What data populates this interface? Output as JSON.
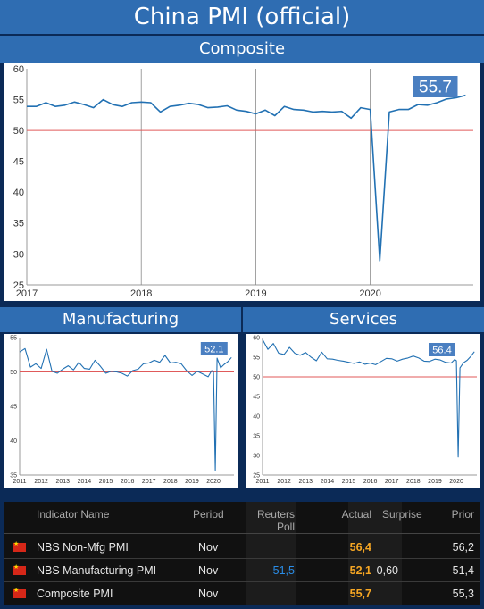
{
  "title": "China PMI (official)",
  "sections": {
    "composite": "Composite",
    "manufacturing": "Manufacturing",
    "services": "Services"
  },
  "colors": {
    "header_bg": "#2f6db2",
    "page_bg": "#0b2a57",
    "line": "#2271b3",
    "threshold": "#e05a5a",
    "label_bg": "#4a7fc1",
    "actual": "#f6a623",
    "poll": "#2a8de8"
  },
  "chart_data": [
    {
      "type": "line",
      "name": "composite",
      "ylim": [
        25,
        60
      ],
      "yticks": [
        25,
        30,
        35,
        40,
        45,
        50,
        55,
        60
      ],
      "xlim": [
        2017,
        2020.9
      ],
      "xticks": [
        {
          "v": 2017,
          "label": "2017"
        },
        {
          "v": 2018,
          "label": "2018"
        },
        {
          "v": 2019,
          "label": "2019"
        },
        {
          "v": 2020,
          "label": "2020"
        }
      ],
      "vgrid": [
        2018,
        2019,
        2020
      ],
      "threshold": 50,
      "callout": "55.7",
      "x": [
        2017.0,
        2017.083,
        2017.167,
        2017.25,
        2017.333,
        2017.417,
        2017.5,
        2017.583,
        2017.667,
        2017.75,
        2017.833,
        2017.917,
        2018.0,
        2018.083,
        2018.167,
        2018.25,
        2018.333,
        2018.417,
        2018.5,
        2018.583,
        2018.667,
        2018.75,
        2018.833,
        2018.917,
        2019.0,
        2019.083,
        2019.167,
        2019.25,
        2019.333,
        2019.417,
        2019.5,
        2019.583,
        2019.667,
        2019.75,
        2019.833,
        2019.917,
        2020.0,
        2020.083,
        2020.167,
        2020.25,
        2020.333,
        2020.417,
        2020.5,
        2020.583,
        2020.667,
        2020.75,
        2020.833
      ],
      "values": [
        53.9,
        53.9,
        54.5,
        53.9,
        54.1,
        54.6,
        54.2,
        53.7,
        55.0,
        54.2,
        53.9,
        54.5,
        54.6,
        54.5,
        53.0,
        53.9,
        54.1,
        54.4,
        54.2,
        53.7,
        53.8,
        54.0,
        53.3,
        53.1,
        52.7,
        53.3,
        52.4,
        53.9,
        53.4,
        53.3,
        53.0,
        53.1,
        53.0,
        53.1,
        52.0,
        53.7,
        53.4,
        28.9,
        53.0,
        53.4,
        53.4,
        54.2,
        54.1,
        54.5,
        55.1,
        55.3,
        55.7
      ]
    },
    {
      "type": "line",
      "name": "manufacturing",
      "ylim": [
        35,
        55
      ],
      "yticks": [
        35,
        40,
        45,
        50,
        55
      ],
      "xlim": [
        2011,
        2020.95
      ],
      "xticks": [
        {
          "v": 2011,
          "label": "2011"
        },
        {
          "v": 2012,
          "label": "2012"
        },
        {
          "v": 2013,
          "label": "2013"
        },
        {
          "v": 2014,
          "label": "2014"
        },
        {
          "v": 2015,
          "label": "2015"
        },
        {
          "v": 2016,
          "label": "2016"
        },
        {
          "v": 2017,
          "label": "2017"
        },
        {
          "v": 2018,
          "label": "2018"
        },
        {
          "v": 2019,
          "label": "2019"
        },
        {
          "v": 2020,
          "label": "2020"
        }
      ],
      "threshold": 50,
      "callout": "52.1",
      "x": [
        2011.0,
        2011.25,
        2011.5,
        2011.75,
        2012.0,
        2012.25,
        2012.5,
        2012.75,
        2013.0,
        2013.25,
        2013.5,
        2013.75,
        2014.0,
        2014.25,
        2014.5,
        2014.75,
        2015.0,
        2015.25,
        2015.5,
        2015.75,
        2016.0,
        2016.25,
        2016.5,
        2016.75,
        2017.0,
        2017.25,
        2017.5,
        2017.75,
        2018.0,
        2018.25,
        2018.5,
        2018.75,
        2019.0,
        2019.25,
        2019.5,
        2019.75,
        2019.917,
        2020.0,
        2020.083,
        2020.167,
        2020.333,
        2020.5,
        2020.667,
        2020.833
      ],
      "values": [
        52.9,
        53.4,
        50.7,
        51.2,
        50.5,
        53.3,
        50.1,
        49.8,
        50.4,
        50.9,
        50.3,
        51.4,
        50.5,
        50.4,
        51.7,
        50.8,
        49.8,
        50.1,
        50.0,
        49.8,
        49.4,
        50.2,
        50.4,
        51.2,
        51.3,
        51.7,
        51.4,
        52.4,
        51.3,
        51.4,
        51.2,
        50.2,
        49.5,
        50.1,
        49.7,
        49.3,
        50.2,
        50.0,
        35.7,
        52.0,
        50.6,
        51.1,
        51.5,
        52.1
      ]
    },
    {
      "type": "line",
      "name": "services",
      "ylim": [
        25,
        60
      ],
      "yticks": [
        25,
        30,
        35,
        40,
        45,
        50,
        55,
        60
      ],
      "xlim": [
        2011,
        2020.95
      ],
      "xticks": [
        {
          "v": 2011,
          "label": "2011"
        },
        {
          "v": 2012,
          "label": "2012"
        },
        {
          "v": 2013,
          "label": "2013"
        },
        {
          "v": 2014,
          "label": "2014"
        },
        {
          "v": 2015,
          "label": "2015"
        },
        {
          "v": 2016,
          "label": "2016"
        },
        {
          "v": 2017,
          "label": "2017"
        },
        {
          "v": 2018,
          "label": "2018"
        },
        {
          "v": 2019,
          "label": "2019"
        },
        {
          "v": 2020,
          "label": "2020"
        }
      ],
      "threshold": 50,
      "callout": "56.4",
      "x": [
        2011.0,
        2011.25,
        2011.5,
        2011.75,
        2012.0,
        2012.25,
        2012.5,
        2012.75,
        2013.0,
        2013.25,
        2013.5,
        2013.75,
        2014.0,
        2014.25,
        2014.5,
        2014.75,
        2015.0,
        2015.25,
        2015.5,
        2015.75,
        2016.0,
        2016.25,
        2016.5,
        2016.75,
        2017.0,
        2017.25,
        2017.5,
        2017.75,
        2018.0,
        2018.25,
        2018.5,
        2018.75,
        2019.0,
        2019.25,
        2019.5,
        2019.75,
        2019.917,
        2020.0,
        2020.083,
        2020.167,
        2020.333,
        2020.5,
        2020.667,
        2020.833
      ],
      "values": [
        59.5,
        57.0,
        58.5,
        56.0,
        55.7,
        57.5,
        56.0,
        55.5,
        56.2,
        55.0,
        54.1,
        56.3,
        54.6,
        54.5,
        54.2,
        54.0,
        53.7,
        53.4,
        53.8,
        53.2,
        53.5,
        53.1,
        53.9,
        54.7,
        54.6,
        54.0,
        54.5,
        54.8,
        55.3,
        54.8,
        54.0,
        53.9,
        54.5,
        54.3,
        53.7,
        53.5,
        54.4,
        54.1,
        29.6,
        52.3,
        53.6,
        54.2,
        55.2,
        56.4
      ]
    }
  ],
  "table": {
    "headers": {
      "indicator": "Indicator Name",
      "period": "Period",
      "poll": "Reuters Poll",
      "actual": "Actual",
      "surprise": "Surprise",
      "prior": "Prior"
    },
    "rows": [
      {
        "name": "NBS Non-Mfg PMI",
        "period": "Nov",
        "poll": "",
        "actual": "56,4",
        "surprise": "",
        "prior": "56,2"
      },
      {
        "name": "NBS Manufacturing PMI",
        "period": "Nov",
        "poll": "51,5",
        "actual": "52,1",
        "surprise": "0,60",
        "prior": "51,4"
      },
      {
        "name": "Composite PMI",
        "period": "Nov",
        "poll": "",
        "actual": "55,7",
        "surprise": "",
        "prior": "55,3"
      }
    ]
  }
}
